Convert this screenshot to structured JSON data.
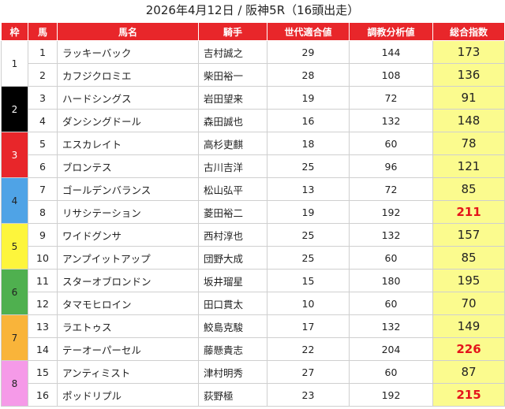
{
  "title": "2026年4月12日 / 阪神5R（16頭出走）",
  "headers": [
    "枠",
    "馬",
    "馬名",
    "騎手",
    "世代適合値",
    "調教分析値",
    "総合指数"
  ],
  "waku": [
    {
      "label": "1",
      "bg": "#ffffff",
      "fg": "#222222"
    },
    {
      "label": "2",
      "bg": "#000000",
      "fg": "#ffffff"
    },
    {
      "label": "3",
      "bg": "#e8262a",
      "fg": "#ffffff"
    },
    {
      "label": "4",
      "bg": "#4fa3e6",
      "fg": "#222222"
    },
    {
      "label": "5",
      "bg": "#fdf53c",
      "fg": "#222222"
    },
    {
      "label": "6",
      "bg": "#4fb04f",
      "fg": "#222222"
    },
    {
      "label": "7",
      "bg": "#f9b43a",
      "fg": "#222222"
    },
    {
      "label": "8",
      "bg": "#f59ae8",
      "fg": "#222222"
    }
  ],
  "rows": [
    {
      "num": "1",
      "name": "ラッキーバック",
      "jockey": "吉村誠之",
      "sedai": "29",
      "chokyo": "144",
      "sogo": "173",
      "high": false
    },
    {
      "num": "2",
      "name": "カフジクロミエ",
      "jockey": "柴田裕一",
      "sedai": "28",
      "chokyo": "108",
      "sogo": "136",
      "high": false
    },
    {
      "num": "3",
      "name": "ハードシングス",
      "jockey": "岩田望来",
      "sedai": "19",
      "chokyo": "72",
      "sogo": "91",
      "high": false
    },
    {
      "num": "4",
      "name": "ダンシングドール",
      "jockey": "森田誠也",
      "sedai": "16",
      "chokyo": "132",
      "sogo": "148",
      "high": false
    },
    {
      "num": "5",
      "name": "エスカレイト",
      "jockey": "高杉吏麒",
      "sedai": "18",
      "chokyo": "60",
      "sogo": "78",
      "high": false
    },
    {
      "num": "6",
      "name": "ブロンテス",
      "jockey": "古川吉洋",
      "sedai": "25",
      "chokyo": "96",
      "sogo": "121",
      "high": false
    },
    {
      "num": "7",
      "name": "ゴールデンバランス",
      "jockey": "松山弘平",
      "sedai": "13",
      "chokyo": "72",
      "sogo": "85",
      "high": false
    },
    {
      "num": "8",
      "name": "リサシテーション",
      "jockey": "菱田裕二",
      "sedai": "19",
      "chokyo": "192",
      "sogo": "211",
      "high": true
    },
    {
      "num": "9",
      "name": "ワイドグンサ",
      "jockey": "西村淳也",
      "sedai": "25",
      "chokyo": "132",
      "sogo": "157",
      "high": false
    },
    {
      "num": "10",
      "name": "アンプイットアップ",
      "jockey": "団野大成",
      "sedai": "25",
      "chokyo": "60",
      "sogo": "85",
      "high": false
    },
    {
      "num": "11",
      "name": "スターオブロンドン",
      "jockey": "坂井瑠星",
      "sedai": "15",
      "chokyo": "180",
      "sogo": "195",
      "high": false
    },
    {
      "num": "12",
      "name": "タマモヒロイン",
      "jockey": "田口貫太",
      "sedai": "10",
      "chokyo": "60",
      "sogo": "70",
      "high": false
    },
    {
      "num": "13",
      "name": "ラエトゥス",
      "jockey": "鮫島克駿",
      "sedai": "17",
      "chokyo": "132",
      "sogo": "149",
      "high": false
    },
    {
      "num": "14",
      "name": "テーオーパーセル",
      "jockey": "藤懸貴志",
      "sedai": "22",
      "chokyo": "204",
      "sogo": "226",
      "high": true
    },
    {
      "num": "15",
      "name": "アンティミスト",
      "jockey": "津村明秀",
      "sedai": "27",
      "chokyo": "60",
      "sogo": "87",
      "high": false
    },
    {
      "num": "16",
      "name": "ポッドリプル",
      "jockey": "荻野極",
      "sedai": "23",
      "chokyo": "192",
      "sogo": "215",
      "high": true
    }
  ]
}
